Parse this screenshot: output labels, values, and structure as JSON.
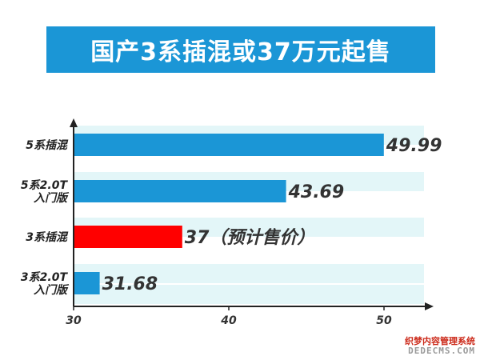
{
  "chart_data": {
    "type": "bar",
    "orientation": "horizontal",
    "title": "国产3系插混或37万元起售",
    "categories": [
      [
        "5系插混"
      ],
      [
        "5系2.0T",
        "入门版"
      ],
      [
        "3系插混"
      ],
      [
        "3系2.0T",
        "入门版"
      ]
    ],
    "values": [
      49.99,
      43.69,
      37,
      31.68
    ],
    "value_labels": [
      "49.99",
      "43.69",
      "37（预计售价）",
      "31.68"
    ],
    "highlight_index": 2,
    "xlim": [
      30,
      52
    ],
    "xticks": [
      30,
      40,
      50
    ],
    "grid": false
  },
  "colors": {
    "banner": "#1b96d6",
    "bar": "#1b96d6",
    "highlight": "#ff0000",
    "stripe": "#e3f6f8",
    "axis": "#222222"
  },
  "watermark": {
    "line1": "织梦内容管理系统",
    "line2": "DEDECMS.COM"
  }
}
